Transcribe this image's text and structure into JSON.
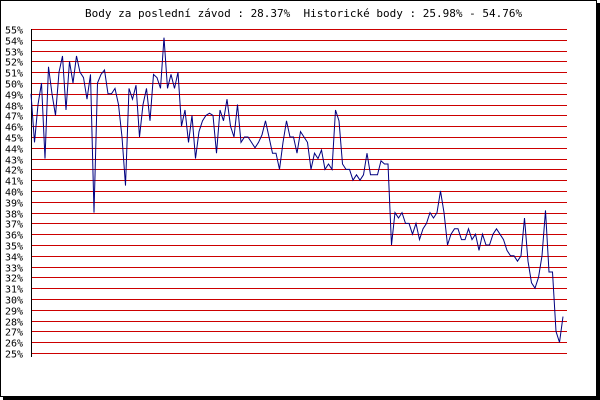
{
  "chart_data": {
    "type": "line",
    "title": "Body za poslední závod : 28.37%  Historické body : 25.98% - 54.76%",
    "xlabel": "",
    "ylabel": "",
    "ylim": [
      25,
      55
    ],
    "yticks": [
      "25%",
      "26%",
      "27%",
      "28%",
      "29%",
      "30%",
      "31%",
      "32%",
      "33%",
      "34%",
      "35%",
      "36%",
      "37%",
      "38%",
      "39%",
      "40%",
      "41%",
      "42%",
      "43%",
      "44%",
      "45%",
      "46%",
      "47%",
      "48%",
      "49%",
      "50%",
      "51%",
      "52%",
      "53%",
      "54%",
      "55%"
    ],
    "grid": true,
    "colors": {
      "grid": "#cc0000",
      "line": "#000080",
      "axis": "#000000"
    },
    "series": [
      {
        "values": [
          49.0,
          44.5,
          48.0,
          50.0,
          43.0,
          51.5,
          49.0,
          47.0,
          51.0,
          52.5,
          47.5,
          52.0,
          50.0,
          52.5,
          51.0,
          50.5,
          48.5,
          50.8,
          38.0,
          50.0,
          50.8,
          51.2,
          49.0,
          49.0,
          49.5,
          48.0,
          45.0,
          40.5,
          49.5,
          48.5,
          49.8,
          45.0,
          48.0,
          49.5,
          46.5,
          50.8,
          50.5,
          49.5,
          54.2,
          49.5,
          50.8,
          49.5,
          51.0,
          46.0,
          47.5,
          44.5,
          47.0,
          43.0,
          45.5,
          46.5,
          47.0,
          47.2,
          47.0,
          43.5,
          47.5,
          46.5,
          48.5,
          46.0,
          45.0,
          48.0,
          44.5,
          45.0,
          45.0,
          44.5,
          44.0,
          44.5,
          45.2,
          46.5,
          45.0,
          43.5,
          43.5,
          42.0,
          44.5,
          46.5,
          45.0,
          45.0,
          43.5,
          45.5,
          45.0,
          44.5,
          42.0,
          43.5,
          43.0,
          43.8,
          42.0,
          42.5,
          42.0,
          47.5,
          46.5,
          42.5,
          42.0,
          42.0,
          41.0,
          41.5,
          41.0,
          41.5,
          43.5,
          41.5,
          41.5,
          41.5,
          42.8,
          42.5,
          42.5,
          35.0,
          38.0,
          37.5,
          38.0,
          37.0,
          37.0,
          36.0,
          37.0,
          35.5,
          36.5,
          37.0,
          38.0,
          37.5,
          38.0,
          40.0,
          38.0,
          35.0,
          36.0,
          36.5,
          36.5,
          35.5,
          35.5,
          36.5,
          35.5,
          36.0,
          34.5,
          36.0,
          35.0,
          35.0,
          36.0,
          36.5,
          36.0,
          35.5,
          34.5,
          34.0,
          34.0,
          33.5,
          34.0,
          37.5,
          33.5,
          31.5,
          31.0,
          32.0,
          34.0,
          38.2,
          32.5,
          32.5,
          27.0,
          25.98,
          28.37
        ]
      }
    ]
  }
}
